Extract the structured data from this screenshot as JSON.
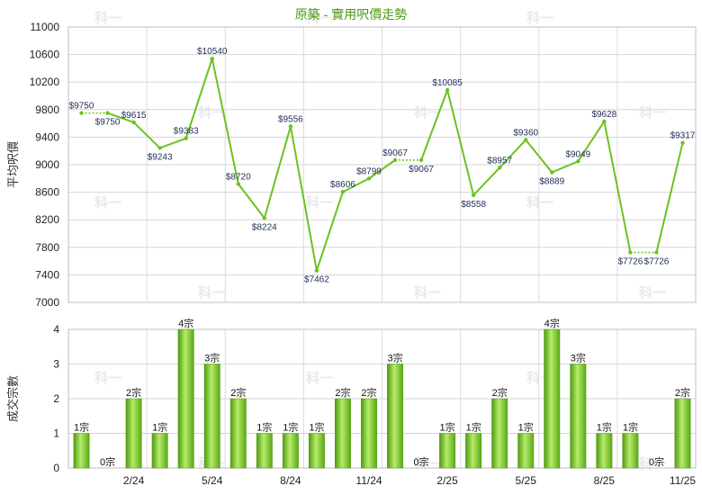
{
  "chart_data": [
    {
      "type": "line",
      "title": "原築 - 實用呎價走勢",
      "ylabel": "平均呎價",
      "ylim": [
        7000,
        11000
      ],
      "yticks": [
        7000,
        7400,
        7800,
        8200,
        8600,
        9000,
        9400,
        9800,
        10200,
        10600,
        11000
      ],
      "grid": true,
      "series": [
        {
          "color": "#6cc21f",
          "values": [
            9750,
            9750,
            9615,
            9243,
            9383,
            10540,
            8720,
            8224,
            9556,
            7462,
            8606,
            8799,
            9067,
            9067,
            10085,
            8558,
            8957,
            9360,
            8889,
            9049,
            9628,
            7726,
            7726,
            9317
          ],
          "labels": [
            "$9750",
            "$9750",
            "$9615",
            "$9243",
            "$9383",
            "$10540",
            "$8720",
            "$8224",
            "$9556",
            "$7462",
            "$8606",
            "$8799",
            "$9067",
            "$9067",
            "$10085",
            "$8558",
            "$8957",
            "$9360",
            "$8889",
            "$9049",
            "$9628",
            "$7726",
            "$7726",
            "$9317"
          ],
          "carried_forward": [
            false,
            true,
            false,
            false,
            false,
            false,
            false,
            false,
            false,
            false,
            false,
            false,
            false,
            true,
            false,
            false,
            false,
            false,
            false,
            false,
            false,
            false,
            true,
            false
          ]
        }
      ]
    },
    {
      "type": "bar",
      "ylabel": "成交宗數",
      "ylim": [
        0,
        4
      ],
      "yticks": [
        0,
        1,
        2,
        3,
        4
      ],
      "xtick_labels": [
        "2/24",
        "5/24",
        "8/24",
        "11/24",
        "2/25",
        "5/25",
        "8/25",
        "11/25"
      ],
      "xtick_indices": [
        2,
        5,
        8,
        11,
        14,
        17,
        20,
        23
      ],
      "grid": true,
      "series": [
        {
          "color": "#6cc21f",
          "values": [
            1,
            0,
            2,
            1,
            4,
            3,
            2,
            1,
            1,
            1,
            2,
            2,
            3,
            0,
            1,
            1,
            2,
            1,
            4,
            3,
            1,
            1,
            0,
            2
          ],
          "labels": [
            "1宗",
            "0宗",
            "2宗",
            "1宗",
            "4宗",
            "3宗",
            "2宗",
            "1宗",
            "1宗",
            "1宗",
            "2宗",
            "2宗",
            "3宗",
            "0宗",
            "1宗",
            "1宗",
            "2宗",
            "1宗",
            "4宗",
            "3宗",
            "1宗",
            "1宗",
            "0宗",
            "2宗"
          ]
        }
      ]
    }
  ],
  "watermark": "科一"
}
